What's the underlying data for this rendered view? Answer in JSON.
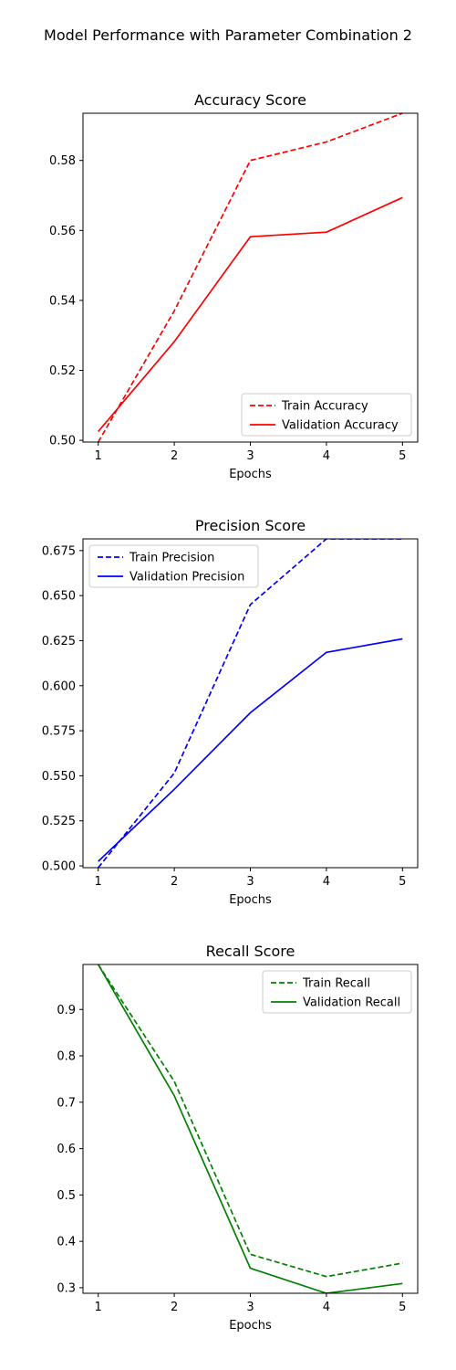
{
  "figure": {
    "suptitle": "Model Performance with Parameter Combination 2"
  },
  "chart_data": [
    {
      "type": "line",
      "title": "Accuracy Score",
      "xlabel": "Epochs",
      "ylabel": "",
      "x": [
        1,
        2,
        3,
        4,
        5
      ],
      "xlim": [
        0.8,
        5.2
      ],
      "ylim": [
        0.4995,
        0.5935
      ],
      "xticks": [
        "1",
        "2",
        "3",
        "4",
        "5"
      ],
      "yticks": [
        "0.50",
        "0.52",
        "0.54",
        "0.56",
        "0.58"
      ],
      "ytick_values": [
        0.5,
        0.52,
        0.54,
        0.56,
        0.58
      ],
      "legend_position": "lower right",
      "grid": false,
      "series": [
        {
          "name": "Train Accuracy",
          "values": [
            0.4995,
            0.537,
            0.58,
            0.5853,
            0.5935
          ],
          "color": "#ff0000",
          "style": "dashed"
        },
        {
          "name": "Validation Accuracy",
          "values": [
            0.5025,
            0.5282,
            0.5582,
            0.5595,
            0.5694
          ],
          "color": "#ff0000",
          "style": "solid"
        }
      ]
    },
    {
      "type": "line",
      "title": "Precision Score",
      "xlabel": "Epochs",
      "ylabel": "",
      "x": [
        1,
        2,
        3,
        4,
        5
      ],
      "xlim": [
        0.8,
        5.2
      ],
      "ylim": [
        0.499,
        0.6815
      ],
      "xticks": [
        "1",
        "2",
        "3",
        "4",
        "5"
      ],
      "yticks": [
        "0.500",
        "0.525",
        "0.550",
        "0.575",
        "0.600",
        "0.625",
        "0.650",
        "0.675"
      ],
      "ytick_values": [
        0.5,
        0.525,
        0.55,
        0.575,
        0.6,
        0.625,
        0.65,
        0.675
      ],
      "legend_position": "upper left",
      "grid": false,
      "series": [
        {
          "name": "Train Precision",
          "values": [
            0.499,
            0.5515,
            0.645,
            0.6815,
            0.6815
          ],
          "color": "#0000ff",
          "style": "dashed"
        },
        {
          "name": "Validation Precision",
          "values": [
            0.5025,
            0.5425,
            0.585,
            0.6185,
            0.626
          ],
          "color": "#0000ff",
          "style": "solid"
        }
      ]
    },
    {
      "type": "line",
      "title": "Recall Score",
      "xlabel": "Epochs",
      "ylabel": "",
      "x": [
        1,
        2,
        3,
        4,
        5
      ],
      "xlim": [
        0.8,
        5.2
      ],
      "ylim": [
        0.288,
        0.997
      ],
      "xticks": [
        "1",
        "2",
        "3",
        "4",
        "5"
      ],
      "yticks": [
        "0.3",
        "0.4",
        "0.5",
        "0.6",
        "0.7",
        "0.8",
        "0.9"
      ],
      "ytick_values": [
        0.3,
        0.4,
        0.5,
        0.6,
        0.7,
        0.8,
        0.9
      ],
      "legend_position": "upper right",
      "grid": false,
      "series": [
        {
          "name": "Train Recall",
          "values": [
            0.997,
            0.745,
            0.372,
            0.324,
            0.353
          ],
          "color": "#008000",
          "style": "dashed"
        },
        {
          "name": "Validation Recall",
          "values": [
            0.997,
            0.714,
            0.342,
            0.288,
            0.309
          ],
          "color": "#008000",
          "style": "solid"
        }
      ]
    }
  ]
}
